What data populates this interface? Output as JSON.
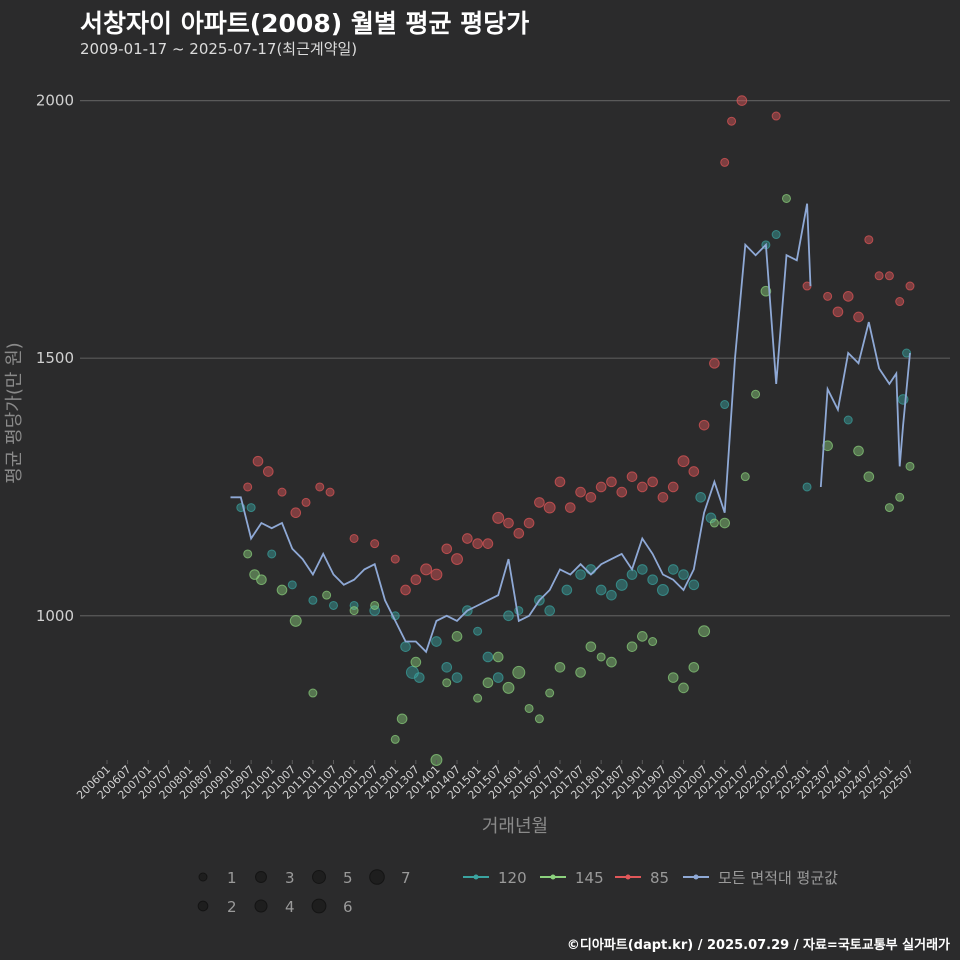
{
  "header": {
    "title": "서창자이 아파트(2008) 월별 평균 평당가",
    "subtitle": "2009-01-17 ~ 2025-07-17(최근계약일)"
  },
  "footer": {
    "credit": "©디아파트(dapt.kr) / 2025.07.29 / 자료=국토교통부 실거래가"
  },
  "colors": {
    "s120": "#3aa3a0",
    "s145": "#8cd17d",
    "s85": "#e15759",
    "avg": "#8fa9d6",
    "grid": "#5a5a5a",
    "text": "#d0d0d0"
  },
  "chart_data": {
    "type": "scatter",
    "xlabel": "거래년월",
    "ylabel": "평균 평당가(만 원)",
    "ylim": [
      720,
      2040
    ],
    "y_ticks": [
      1000,
      1500,
      2000
    ],
    "x_ticks": [
      "200601",
      "200607",
      "200701",
      "200707",
      "200801",
      "200807",
      "200901",
      "200907",
      "201001",
      "201007",
      "201101",
      "201107",
      "201201",
      "201207",
      "201301",
      "201307",
      "201401",
      "201407",
      "201501",
      "201507",
      "201601",
      "201607",
      "201701",
      "201707",
      "201801",
      "201807",
      "201901",
      "201907",
      "202001",
      "202007",
      "202101",
      "202107",
      "202201",
      "202207",
      "202301",
      "202307",
      "202401",
      "202407",
      "202501",
      "202507"
    ],
    "x_range": [
      "2006-01",
      "2025-07"
    ],
    "grid": "horizontal",
    "size_legend": {
      "values": [
        1,
        2,
        3,
        4,
        5,
        6,
        7
      ]
    },
    "legend": [
      {
        "key": "s120",
        "label": "120"
      },
      {
        "key": "s145",
        "label": "145"
      },
      {
        "key": "s85",
        "label": "85"
      },
      {
        "key": "avg",
        "label": "모든 면적대 평균값"
      }
    ],
    "series": [
      {
        "name": "120",
        "key": "s120",
        "points": [
          [
            "2009-04",
            1210,
            1
          ],
          [
            "2009-07",
            1210,
            1
          ],
          [
            "2010-01",
            1120,
            1
          ],
          [
            "2010-07",
            1060,
            1
          ],
          [
            "2011-01",
            1030,
            1
          ],
          [
            "2011-07",
            1020,
            1
          ],
          [
            "2012-01",
            1020,
            1
          ],
          [
            "2012-07",
            1010,
            2
          ],
          [
            "2013-01",
            1000,
            1
          ],
          [
            "2013-04",
            940,
            2
          ],
          [
            "2013-06",
            890,
            4
          ],
          [
            "2013-08",
            880,
            2
          ],
          [
            "2014-01",
            950,
            2
          ],
          [
            "2014-04",
            900,
            2
          ],
          [
            "2014-07",
            880,
            2
          ],
          [
            "2014-10",
            1010,
            2
          ],
          [
            "2015-01",
            970,
            1
          ],
          [
            "2015-04",
            920,
            2
          ],
          [
            "2015-07",
            880,
            2
          ],
          [
            "2015-10",
            1000,
            2
          ],
          [
            "2016-01",
            1010,
            1
          ],
          [
            "2016-07",
            1030,
            2
          ],
          [
            "2016-10",
            1010,
            2
          ],
          [
            "2017-03",
            1050,
            2
          ],
          [
            "2017-07",
            1080,
            2
          ],
          [
            "2017-10",
            1090,
            2
          ],
          [
            "2018-01",
            1050,
            2
          ],
          [
            "2018-04",
            1040,
            2
          ],
          [
            "2018-07",
            1060,
            3
          ],
          [
            "2018-10",
            1080,
            2
          ],
          [
            "2019-01",
            1090,
            2
          ],
          [
            "2019-04",
            1070,
            2
          ],
          [
            "2019-07",
            1050,
            3
          ],
          [
            "2019-10",
            1090,
            2
          ],
          [
            "2020-01",
            1080,
            2
          ],
          [
            "2020-04",
            1060,
            2
          ],
          [
            "2020-06",
            1230,
            2
          ],
          [
            "2020-09",
            1190,
            2
          ],
          [
            "2021-01",
            1410,
            1
          ],
          [
            "2022-01",
            1720,
            1
          ],
          [
            "2022-04",
            1740,
            1
          ],
          [
            "2023-01",
            1250,
            1
          ],
          [
            "2024-01",
            1380,
            1
          ],
          [
            "2025-05",
            1420,
            2
          ],
          [
            "2025-06",
            1510,
            1
          ]
        ]
      },
      {
        "name": "145",
        "key": "s145",
        "points": [
          [
            "2009-06",
            1120,
            1
          ],
          [
            "2009-08",
            1080,
            2
          ],
          [
            "2009-10",
            1070,
            2
          ],
          [
            "2010-04",
            1050,
            2
          ],
          [
            "2010-08",
            990,
            3
          ],
          [
            "2011-01",
            850,
            1
          ],
          [
            "2011-05",
            1040,
            1
          ],
          [
            "2012-01",
            1010,
            1
          ],
          [
            "2012-07",
            1020,
            1
          ],
          [
            "2013-01",
            760,
            1
          ],
          [
            "2013-03",
            800,
            2
          ],
          [
            "2013-07",
            910,
            2
          ],
          [
            "2014-01",
            720,
            3
          ],
          [
            "2014-04",
            870,
            1
          ],
          [
            "2014-07",
            960,
            2
          ],
          [
            "2015-01",
            840,
            1
          ],
          [
            "2015-04",
            870,
            2
          ],
          [
            "2015-07",
            920,
            2
          ],
          [
            "2015-10",
            860,
            3
          ],
          [
            "2016-01",
            890,
            4
          ],
          [
            "2016-04",
            820,
            1
          ],
          [
            "2016-07",
            800,
            1
          ],
          [
            "2016-10",
            850,
            1
          ],
          [
            "2017-01",
            900,
            2
          ],
          [
            "2017-07",
            890,
            2
          ],
          [
            "2017-10",
            940,
            2
          ],
          [
            "2018-01",
            920,
            1
          ],
          [
            "2018-04",
            910,
            2
          ],
          [
            "2018-10",
            940,
            2
          ],
          [
            "2019-01",
            960,
            2
          ],
          [
            "2019-04",
            950,
            1
          ],
          [
            "2019-10",
            880,
            2
          ],
          [
            "2020-01",
            860,
            2
          ],
          [
            "2020-04",
            900,
            2
          ],
          [
            "2020-07",
            970,
            3
          ],
          [
            "2020-10",
            1180,
            1
          ],
          [
            "2021-01",
            1180,
            2
          ],
          [
            "2021-07",
            1270,
            1
          ],
          [
            "2021-10",
            1430,
            1
          ],
          [
            "2022-01",
            1630,
            2
          ],
          [
            "2022-07",
            1810,
            1
          ],
          [
            "2023-07",
            1330,
            2
          ],
          [
            "2024-04",
            1320,
            2
          ],
          [
            "2024-07",
            1270,
            2
          ],
          [
            "2025-01",
            1210,
            1
          ],
          [
            "2025-04",
            1230,
            1
          ],
          [
            "2025-07",
            1290,
            1
          ]
        ]
      },
      {
        "name": "85",
        "key": "s85",
        "points": [
          [
            "2009-06",
            1250,
            1
          ],
          [
            "2009-09",
            1300,
            2
          ],
          [
            "2009-12",
            1280,
            2
          ],
          [
            "2010-04",
            1240,
            1
          ],
          [
            "2010-08",
            1200,
            2
          ],
          [
            "2010-11",
            1220,
            1
          ],
          [
            "2011-03",
            1250,
            1
          ],
          [
            "2011-06",
            1240,
            1
          ],
          [
            "2012-01",
            1150,
            1
          ],
          [
            "2012-07",
            1140,
            1
          ],
          [
            "2013-01",
            1110,
            1
          ],
          [
            "2013-04",
            1050,
            2
          ],
          [
            "2013-07",
            1070,
            2
          ],
          [
            "2013-10",
            1090,
            3
          ],
          [
            "2014-01",
            1080,
            3
          ],
          [
            "2014-04",
            1130,
            2
          ],
          [
            "2014-07",
            1110,
            3
          ],
          [
            "2014-10",
            1150,
            2
          ],
          [
            "2015-01",
            1140,
            2
          ],
          [
            "2015-04",
            1140,
            2
          ],
          [
            "2015-07",
            1190,
            3
          ],
          [
            "2015-10",
            1180,
            2
          ],
          [
            "2016-01",
            1160,
            2
          ],
          [
            "2016-04",
            1180,
            2
          ],
          [
            "2016-07",
            1220,
            2
          ],
          [
            "2016-10",
            1210,
            3
          ],
          [
            "2017-01",
            1260,
            2
          ],
          [
            "2017-04",
            1210,
            2
          ],
          [
            "2017-07",
            1240,
            2
          ],
          [
            "2017-10",
            1230,
            2
          ],
          [
            "2018-01",
            1250,
            2
          ],
          [
            "2018-04",
            1260,
            2
          ],
          [
            "2018-07",
            1240,
            2
          ],
          [
            "2018-10",
            1270,
            2
          ],
          [
            "2019-01",
            1250,
            2
          ],
          [
            "2019-04",
            1260,
            2
          ],
          [
            "2019-07",
            1230,
            2
          ],
          [
            "2019-10",
            1250,
            2
          ],
          [
            "2020-01",
            1300,
            3
          ],
          [
            "2020-04",
            1280,
            2
          ],
          [
            "2020-07",
            1370,
            2
          ],
          [
            "2020-10",
            1490,
            2
          ],
          [
            "2021-01",
            1880,
            1
          ],
          [
            "2021-03",
            1960,
            1
          ],
          [
            "2021-06",
            2000,
            2
          ],
          [
            "2022-04",
            1970,
            1
          ],
          [
            "2023-01",
            1640,
            1
          ],
          [
            "2023-07",
            1620,
            1
          ],
          [
            "2023-10",
            1590,
            2
          ],
          [
            "2024-01",
            1620,
            2
          ],
          [
            "2024-04",
            1580,
            2
          ],
          [
            "2024-07",
            1730,
            1
          ],
          [
            "2024-10",
            1660,
            1
          ],
          [
            "2025-01",
            1660,
            1
          ],
          [
            "2025-04",
            1610,
            1
          ],
          [
            "2025-07",
            1640,
            1
          ]
        ]
      }
    ],
    "avg_line": {
      "name": "모든 면적대 평균값",
      "segments": [
        [
          [
            "2009-01",
            1230
          ],
          [
            "2009-04",
            1230
          ],
          [
            "2009-07",
            1150
          ],
          [
            "2009-10",
            1180
          ],
          [
            "2010-01",
            1170
          ],
          [
            "2010-04",
            1180
          ],
          [
            "2010-07",
            1130
          ],
          [
            "2010-10",
            1110
          ],
          [
            "2011-01",
            1080
          ],
          [
            "2011-04",
            1120
          ],
          [
            "2011-07",
            1080
          ],
          [
            "2011-10",
            1060
          ],
          [
            "2012-01",
            1070
          ],
          [
            "2012-04",
            1090
          ],
          [
            "2012-07",
            1100
          ],
          [
            "2012-10",
            1030
          ],
          [
            "2013-01",
            990
          ],
          [
            "2013-04",
            950
          ],
          [
            "2013-07",
            950
          ],
          [
            "2013-10",
            930
          ],
          [
            "2014-01",
            990
          ],
          [
            "2014-04",
            1000
          ],
          [
            "2014-07",
            990
          ],
          [
            "2014-10",
            1010
          ],
          [
            "2015-01",
            1020
          ],
          [
            "2015-04",
            1030
          ],
          [
            "2015-07",
            1040
          ],
          [
            "2015-10",
            1110
          ],
          [
            "2016-01",
            990
          ],
          [
            "2016-04",
            1000
          ],
          [
            "2016-07",
            1030
          ],
          [
            "2016-10",
            1050
          ],
          [
            "2017-01",
            1090
          ],
          [
            "2017-04",
            1080
          ],
          [
            "2017-07",
            1100
          ],
          [
            "2017-10",
            1080
          ],
          [
            "2018-01",
            1100
          ],
          [
            "2018-04",
            1110
          ],
          [
            "2018-07",
            1120
          ],
          [
            "2018-10",
            1090
          ],
          [
            "2019-01",
            1150
          ],
          [
            "2019-04",
            1120
          ],
          [
            "2019-07",
            1080
          ],
          [
            "2019-10",
            1070
          ],
          [
            "2020-01",
            1050
          ],
          [
            "2020-04",
            1090
          ],
          [
            "2020-07",
            1200
          ],
          [
            "2020-10",
            1260
          ],
          [
            "2021-01",
            1200
          ],
          [
            "2021-04",
            1500
          ],
          [
            "2021-07",
            1720
          ],
          [
            "2021-10",
            1700
          ],
          [
            "2022-01",
            1720
          ],
          [
            "2022-04",
            1450
          ],
          [
            "2022-07",
            1700
          ],
          [
            "2022-10",
            1690
          ],
          [
            "2023-01",
            1800
          ],
          [
            "2023-02",
            1640
          ]
        ],
        [
          [
            "2023-05",
            1250
          ],
          [
            "2023-07",
            1440
          ],
          [
            "2023-10",
            1400
          ],
          [
            "2024-01",
            1510
          ],
          [
            "2024-04",
            1490
          ],
          [
            "2024-07",
            1570
          ],
          [
            "2024-10",
            1480
          ],
          [
            "2025-01",
            1450
          ],
          [
            "2025-02",
            1460
          ],
          [
            "2025-03",
            1470
          ],
          [
            "2025-04",
            1290
          ],
          [
            "2025-05",
            1370
          ],
          [
            "2025-07",
            1510
          ]
        ]
      ]
    }
  }
}
